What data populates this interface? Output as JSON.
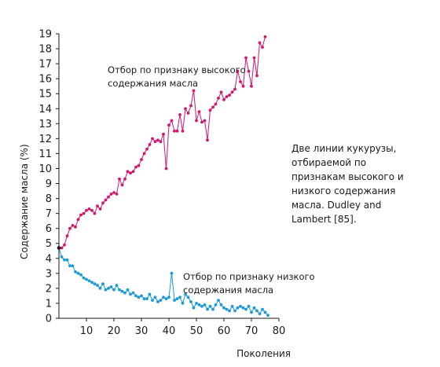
{
  "chart_data": {
    "type": "line",
    "xlabel": "Поколения",
    "ylabel": "Содержание масла (%)",
    "xlim": [
      0,
      80
    ],
    "ylim": [
      0,
      19
    ],
    "xticks": [
      10,
      20,
      30,
      40,
      50,
      60,
      70,
      80
    ],
    "yticks": [
      0,
      1,
      2,
      3,
      4,
      5,
      6,
      7,
      8,
      9,
      10,
      11,
      12,
      13,
      14,
      15,
      16,
      17,
      18,
      19
    ],
    "start_point": {
      "x": 0,
      "y": 4.7,
      "color": "#1a1a1a"
    },
    "series": [
      {
        "color": "#d4166f",
        "x": [
          0,
          1,
          2,
          3,
          4,
          5,
          6,
          7,
          8,
          9,
          10,
          11,
          12,
          13,
          14,
          15,
          16,
          17,
          18,
          19,
          20,
          21,
          22,
          23,
          24,
          25,
          26,
          27,
          28,
          29,
          30,
          31,
          32,
          33,
          34,
          35,
          36,
          37,
          38,
          39,
          40,
          41,
          42,
          43,
          44,
          45,
          46,
          47,
          48,
          49,
          50,
          51,
          52,
          53,
          54,
          55,
          56,
          57,
          58,
          59,
          60,
          61,
          62,
          63,
          64,
          65,
          66,
          67,
          68,
          69,
          70,
          71,
          72,
          73,
          74,
          75,
          76
        ],
        "y": [
          4.7,
          4.7,
          4.9,
          5.5,
          6.0,
          6.2,
          6.1,
          6.6,
          6.9,
          7.0,
          7.2,
          7.3,
          7.2,
          7.0,
          7.5,
          7.3,
          7.7,
          7.9,
          8.1,
          8.3,
          8.4,
          8.3,
          9.3,
          8.9,
          9.3,
          9.8,
          9.7,
          9.8,
          10.1,
          10.2,
          10.6,
          11.0,
          11.3,
          11.6,
          12.0,
          11.8,
          11.9,
          11.8,
          12.3,
          10.0,
          12.9,
          13.2,
          12.5,
          12.5,
          13.6,
          12.5,
          14.0,
          13.7,
          14.2,
          15.2,
          13.2,
          13.8,
          13.1,
          13.2,
          11.9,
          13.9,
          14.1,
          14.3,
          14.7,
          15.1,
          14.6,
          14.8,
          14.9,
          15.1,
          15.3,
          16.5,
          15.8,
          15.5,
          17.4,
          16.5,
          15.5,
          17.4,
          16.2,
          18.4,
          18.1,
          18.8,
          null
        ]
      },
      {
        "color": "#1a9ad6",
        "x": [
          0,
          1,
          2,
          3,
          4,
          5,
          6,
          7,
          8,
          9,
          10,
          11,
          12,
          13,
          14,
          15,
          16,
          17,
          18,
          19,
          20,
          21,
          22,
          23,
          24,
          25,
          26,
          27,
          28,
          29,
          30,
          31,
          32,
          33,
          34,
          35,
          36,
          37,
          38,
          39,
          40,
          41,
          42,
          43,
          44,
          45,
          46,
          47,
          48,
          49,
          50,
          51,
          52,
          53,
          54,
          55,
          56,
          57,
          58,
          59,
          60,
          61,
          62,
          63,
          64,
          65,
          66,
          67,
          68,
          69,
          70,
          71,
          72,
          73,
          74,
          75,
          76
        ],
        "y": [
          4.7,
          4.1,
          3.9,
          3.9,
          3.5,
          3.5,
          3.1,
          3.0,
          2.9,
          2.7,
          2.6,
          2.5,
          2.4,
          2.3,
          2.2,
          2.0,
          2.3,
          1.9,
          2.0,
          2.1,
          1.9,
          2.2,
          1.9,
          1.8,
          1.7,
          1.9,
          1.6,
          1.7,
          1.5,
          1.4,
          1.5,
          1.3,
          1.3,
          1.6,
          1.2,
          1.4,
          1.1,
          1.2,
          1.4,
          1.3,
          1.4,
          3.0,
          1.2,
          1.3,
          1.4,
          1.0,
          1.6,
          1.4,
          1.1,
          0.7,
          1.0,
          0.9,
          0.8,
          0.9,
          0.6,
          0.8,
          0.6,
          0.9,
          1.2,
          0.9,
          0.7,
          0.6,
          0.5,
          0.8,
          0.5,
          0.7,
          0.8,
          0.7,
          0.6,
          0.8,
          0.4,
          0.7,
          0.5,
          0.3,
          0.6,
          0.4,
          0.2
        ]
      }
    ],
    "annotations": {
      "high_line_1": "Отбор по признаку высокого",
      "high_line_2": "содержания масла",
      "low_line_1": "Отбор по признаку низкого",
      "low_line_2": "содержания масла"
    }
  },
  "caption": "Две линии кукурузы, отбираемой по признакам высокого и низкого содержания масла. Dudley and Lambert [85]."
}
